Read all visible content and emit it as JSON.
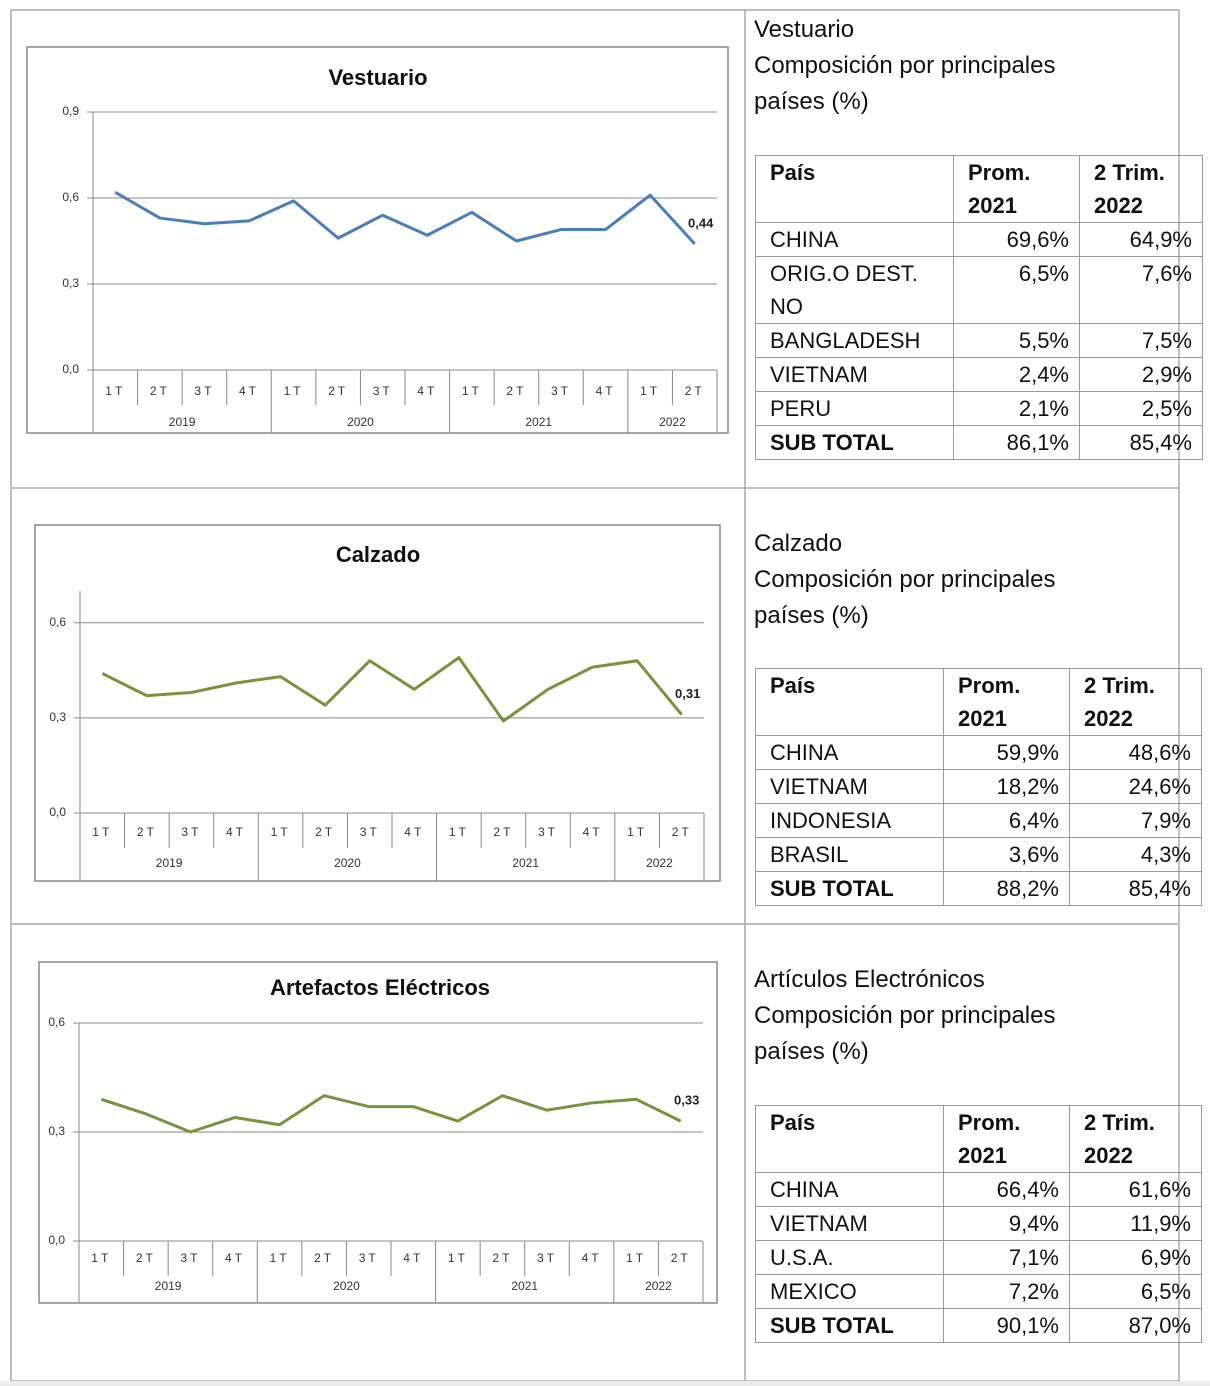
{
  "chart_data": [
    {
      "type": "line",
      "title": "Vestuario",
      "categories": [
        "1T",
        "2T",
        "3T",
        "4T",
        "1T",
        "2T",
        "3T",
        "4T",
        "1T",
        "2T",
        "3T",
        "4T",
        "1T",
        "2T"
      ],
      "category_groups": [
        "2019",
        "2019",
        "2019",
        "2019",
        "2020",
        "2020",
        "2020",
        "2020",
        "2021",
        "2021",
        "2021",
        "2021",
        "2022",
        "2022"
      ],
      "series": [
        {
          "color": "#4a7ebb",
          "values": [
            0.62,
            0.53,
            0.51,
            0.52,
            0.59,
            0.46,
            0.54,
            0.47,
            0.55,
            0.45,
            0.49,
            0.49,
            0.61,
            0.44
          ],
          "value_labels": [
            null,
            null,
            null,
            null,
            null,
            null,
            null,
            null,
            null,
            null,
            null,
            null,
            null,
            "0,44"
          ]
        }
      ],
      "ylim": [
        0,
        0.9
      ],
      "yticks": [
        {
          "value": 0,
          "label": "0,0"
        },
        {
          "value": 0.3,
          "label": "0,3"
        },
        {
          "value": 0.6,
          "label": "0,6"
        },
        {
          "value": 0.9,
          "label": "0,9"
        }
      ],
      "grid": true
    },
    {
      "type": "line",
      "title": "Calzado",
      "categories": [
        "1T",
        "2T",
        "3T",
        "4T",
        "1T",
        "2T",
        "3T",
        "4T",
        "1T",
        "2T",
        "3T",
        "4T",
        "1T",
        "2T"
      ],
      "category_groups": [
        "2019",
        "2019",
        "2019",
        "2019",
        "2020",
        "2020",
        "2020",
        "2020",
        "2021",
        "2021",
        "2021",
        "2021",
        "2022",
        "2022"
      ],
      "series": [
        {
          "color": "#77933c",
          "values": [
            0.44,
            0.37,
            0.38,
            0.41,
            0.43,
            0.34,
            0.48,
            0.39,
            0.49,
            0.29,
            0.39,
            0.46,
            0.48,
            0.31
          ],
          "value_labels": [
            null,
            null,
            null,
            null,
            null,
            null,
            null,
            null,
            null,
            null,
            null,
            null,
            null,
            "0,31"
          ]
        }
      ],
      "ylim": [
        0,
        0.7
      ],
      "yticks": [
        {
          "value": 0,
          "label": "0,0"
        },
        {
          "value": 0.3,
          "label": "0,3"
        },
        {
          "value": 0.6,
          "label": "0,6"
        }
      ],
      "grid": true
    },
    {
      "type": "line",
      "title": "Artefactos Eléctricos",
      "categories": [
        "1T",
        "2T",
        "3T",
        "4T",
        "1T",
        "2T",
        "3T",
        "4T",
        "1T",
        "2T",
        "3T",
        "4T",
        "1T",
        "2T"
      ],
      "category_groups": [
        "2019",
        "2019",
        "2019",
        "2019",
        "2020",
        "2020",
        "2020",
        "2020",
        "2021",
        "2021",
        "2021",
        "2021",
        "2022",
        "2022"
      ],
      "series": [
        {
          "color": "#77933c",
          "values": [
            0.39,
            0.35,
            0.3,
            0.34,
            0.32,
            0.4,
            0.37,
            0.37,
            0.33,
            0.4,
            0.36,
            0.38,
            0.39,
            0.33
          ],
          "value_labels": [
            null,
            null,
            null,
            null,
            null,
            null,
            null,
            null,
            null,
            null,
            null,
            null,
            null,
            "0,33"
          ]
        }
      ],
      "ylim": [
        0,
        0.6
      ],
      "yticks": [
        {
          "value": 0,
          "label": "0,0"
        },
        {
          "value": 0.3,
          "label": "0,3"
        },
        {
          "value": 0.6,
          "label": "0,6"
        }
      ],
      "grid": true
    }
  ],
  "tables": [
    {
      "title": [
        "Vestuario",
        "Composición por principales países (%)"
      ],
      "header": [
        "País",
        "Prom. 2021",
        "2 Trim. 2022"
      ],
      "rows": [
        [
          "CHINA",
          "69,6%",
          "64,9%"
        ],
        [
          "ORIG.O DEST. NO",
          "6,5%",
          "7,6%"
        ],
        [
          "BANGLADESH",
          "5,5%",
          "7,5%"
        ],
        [
          "VIETNAM",
          "2,4%",
          "2,9%"
        ],
        [
          "PERU",
          "2,1%",
          "2,5%"
        ],
        [
          "SUB TOTAL",
          "86,1%",
          "85,4%"
        ]
      ]
    },
    {
      "title": [
        "Calzado",
        "Composición por principales países (%)"
      ],
      "header": [
        "País",
        "Prom. 2021",
        "2 Trim. 2022"
      ],
      "rows": [
        [
          "CHINA",
          "59,9%",
          "48,6%"
        ],
        [
          "VIETNAM",
          "18,2%",
          "24,6%"
        ],
        [
          "INDONESIA",
          "6,4%",
          "7,9%"
        ],
        [
          "BRASIL",
          "3,6%",
          "4,3%"
        ],
        [
          "SUB TOTAL",
          "88,2%",
          "85,4%"
        ]
      ]
    },
    {
      "title": [
        "Artículos Electrónicos",
        "Composición por principales países (%)"
      ],
      "header": [
        "País",
        "Prom. 2021",
        "2 Trim. 2022"
      ],
      "rows": [
        [
          "CHINA",
          "66,4%",
          "61,6%"
        ],
        [
          "VIETNAM",
          "9,4%",
          "11,9%"
        ],
        [
          "U.S.A.",
          "7,1%",
          "6,9%"
        ],
        [
          "MEXICO",
          "7,2%",
          "6,5%"
        ],
        [
          "SUB TOTAL",
          "90,1%",
          "87,0%"
        ]
      ]
    }
  ]
}
